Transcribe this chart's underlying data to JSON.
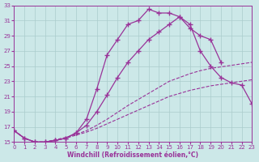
{
  "xlabel": "Windchill (Refroidissement éolien,°C)",
  "bg_color": "#cce8e8",
  "grid_color": "#aacccc",
  "line_color": "#993399",
  "xlim": [
    0,
    23
  ],
  "ylim": [
    15,
    33
  ],
  "xticks": [
    0,
    1,
    2,
    3,
    4,
    5,
    6,
    7,
    8,
    9,
    10,
    11,
    12,
    13,
    14,
    15,
    16,
    17,
    18,
    19,
    20,
    21,
    22,
    23
  ],
  "yticks": [
    15,
    17,
    19,
    21,
    23,
    25,
    27,
    29,
    31,
    33
  ],
  "curve_upper_x": [
    0,
    1,
    2,
    3,
    4,
    5,
    6,
    7,
    8,
    9,
    10,
    11,
    12,
    13,
    14,
    15,
    16,
    17,
    18,
    19,
    20
  ],
  "curve_upper_y": [
    16.5,
    15.5,
    15.0,
    15.0,
    15.2,
    15.5,
    16.2,
    18.0,
    22.0,
    26.5,
    28.5,
    30.5,
    31.0,
    32.5,
    32.0,
    32.0,
    31.5,
    30.0,
    29.0,
    28.5,
    25.5
  ],
  "curve_lower_x": [
    0,
    1,
    2,
    3,
    4,
    5,
    6,
    7,
    8,
    9,
    10,
    11,
    12,
    13,
    14,
    15,
    16,
    17,
    18,
    19,
    20,
    21,
    22,
    23
  ],
  "curve_lower_y": [
    16.5,
    15.5,
    15.0,
    15.0,
    15.2,
    15.5,
    16.2,
    17.2,
    19.0,
    21.2,
    23.5,
    25.5,
    27.0,
    28.5,
    29.5,
    30.5,
    31.5,
    30.5,
    27.0,
    25.0,
    23.5,
    22.8,
    22.5,
    20.0
  ],
  "dashed1_x": [
    0,
    1,
    2,
    3,
    4,
    5,
    6,
    7,
    8,
    9,
    10,
    11,
    12,
    13,
    14,
    15,
    16,
    17,
    18,
    19,
    20,
    21,
    22,
    23
  ],
  "dashed1_y": [
    16.5,
    15.5,
    15.0,
    15.0,
    15.3,
    15.6,
    16.0,
    16.5,
    17.2,
    18.0,
    18.9,
    19.8,
    20.6,
    21.4,
    22.2,
    23.0,
    23.5,
    24.0,
    24.4,
    24.7,
    24.9,
    25.1,
    25.3,
    25.5
  ],
  "dashed2_x": [
    0,
    1,
    2,
    3,
    4,
    5,
    6,
    7,
    8,
    9,
    10,
    11,
    12,
    13,
    14,
    15,
    16,
    17,
    18,
    19,
    20,
    21,
    22,
    23
  ],
  "dashed2_y": [
    16.5,
    15.5,
    15.0,
    15.0,
    15.2,
    15.5,
    15.9,
    16.3,
    16.8,
    17.4,
    18.0,
    18.6,
    19.2,
    19.8,
    20.4,
    21.0,
    21.4,
    21.8,
    22.1,
    22.4,
    22.6,
    22.8,
    23.0,
    23.2
  ],
  "marker": "+",
  "marker_size": 4
}
